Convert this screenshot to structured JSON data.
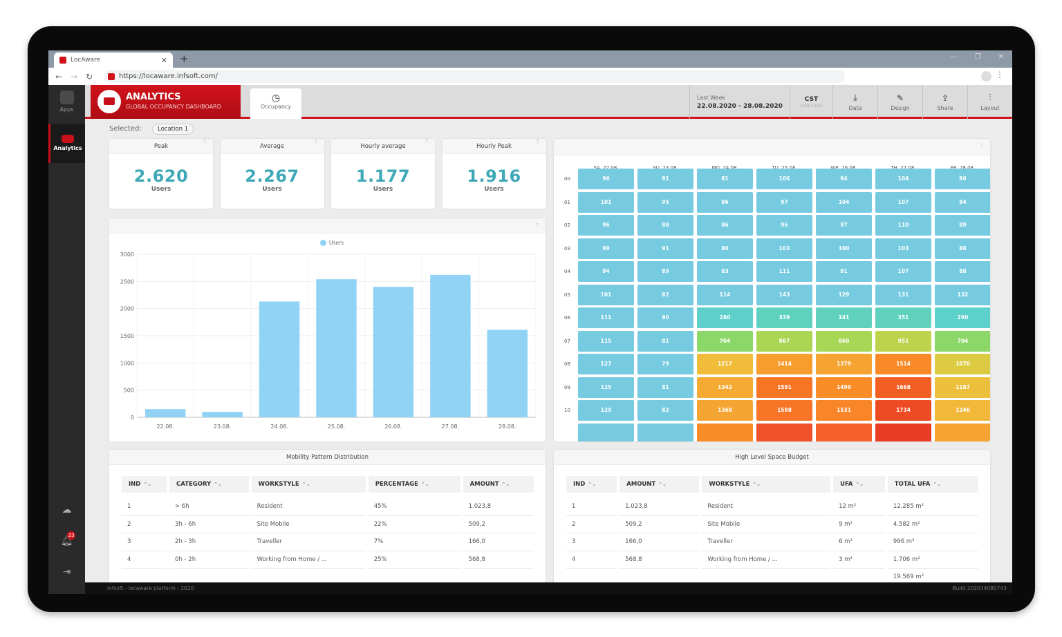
{
  "browser": {
    "tab_title": "LocAware",
    "url": "https://locaware.infsoft.com/"
  },
  "sidebar": {
    "items": [
      {
        "label": "Apps",
        "icon": "apps-icon"
      },
      {
        "label": "Analytics",
        "icon": "analytics-icon"
      }
    ],
    "bottom_icons": [
      "cloud-icon",
      "bell-icon",
      "logout-icon"
    ],
    "notification_count": "33"
  },
  "header": {
    "title": "ANALYTICS",
    "subtitle": "GLOBAL OCCUPANCY DASHBOARD",
    "tab": "Occupancy",
    "range_label": "Last Week",
    "range": "22.08.2020 - 28.08.2020",
    "timezone": "CST",
    "tz_offset": "(UTC+02)",
    "buttons": [
      {
        "label": "Data",
        "icon": "download-icon"
      },
      {
        "label": "Design",
        "icon": "brush-icon"
      },
      {
        "label": "Share",
        "icon": "share-icon"
      },
      {
        "label": "Layout",
        "icon": "sliders-icon"
      }
    ]
  },
  "selection": {
    "label": "Selected:",
    "value": "Location 1"
  },
  "kpis": [
    {
      "title": "Peak",
      "value": "2.620",
      "unit": "Users"
    },
    {
      "title": "Average",
      "value": "2.267",
      "unit": "Users"
    },
    {
      "title": "Hourly average",
      "value": "1.177",
      "unit": "Users"
    },
    {
      "title": "Hourly Peak",
      "value": "1.916",
      "unit": "Users"
    }
  ],
  "chart_data": {
    "type": "bar",
    "categories": [
      "22.08.",
      "23.08.",
      "24.08.",
      "25.08.",
      "26.08.",
      "27.08.",
      "28.08."
    ],
    "series": [
      {
        "name": "Users",
        "values": [
          150,
          100,
          2130,
          2540,
          2400,
          2620,
          1610
        ]
      }
    ],
    "ylim": [
      0,
      3000
    ],
    "yticks": [
      0,
      500,
      1000,
      1500,
      2000,
      2500,
      3000
    ],
    "legend": "top-center",
    "grid": true,
    "color": "#91d3f5"
  },
  "heatmap": {
    "columns": [
      "SA, 22.08.",
      "SU, 23.08.",
      "MO, 24.08.",
      "TU, 25.08.",
      "WE, 26.08.",
      "TH, 27.08.",
      "FR, 28.08."
    ],
    "rows": [
      "00",
      "01",
      "02",
      "03",
      "04",
      "05",
      "06",
      "07",
      "08",
      "09",
      "10"
    ],
    "values": [
      [
        96,
        91,
        81,
        106,
        94,
        104,
        86
      ],
      [
        101,
        95,
        86,
        97,
        104,
        107,
        84
      ],
      [
        96,
        88,
        86,
        96,
        97,
        110,
        89
      ],
      [
        99,
        91,
        80,
        103,
        100,
        103,
        88
      ],
      [
        94,
        89,
        83,
        111,
        91,
        107,
        88
      ],
      [
        101,
        82,
        114,
        143,
        129,
        131,
        132
      ],
      [
        111,
        90,
        280,
        339,
        341,
        351,
        290
      ],
      [
        115,
        81,
        704,
        867,
        860,
        951,
        704
      ],
      [
        127,
        79,
        1217,
        1414,
        1379,
        1514,
        1070
      ],
      [
        125,
        81,
        1342,
        1591,
        1499,
        1668,
        1187
      ],
      [
        129,
        82,
        1368,
        1598,
        1531,
        1734,
        1246
      ]
    ],
    "partial_row_colors": [
      "#76cbe0",
      "#76cbe0",
      "#f98d27",
      "#f0502a",
      "#f5612a",
      "#ea3b24",
      "#f5a431"
    ]
  },
  "mobility": {
    "title": "Mobility Pattern Distribution",
    "columns": [
      "IND",
      "CATEGORY",
      "WORKSTYLE",
      "PERCENTAGE",
      "AMOUNT"
    ],
    "rows": [
      [
        "1",
        "> 6h",
        "Resident",
        "45%",
        "1.023,8"
      ],
      [
        "2",
        "3h - 6h",
        "Site Mobile",
        "22%",
        "509,2"
      ],
      [
        "3",
        "2h - 3h",
        "Traveller",
        "7%",
        "166,0"
      ],
      [
        "4",
        "0h - 2h",
        "Working from Home / ...",
        "25%",
        "568,8"
      ]
    ]
  },
  "budget": {
    "title": "High Level Space Budget",
    "columns": [
      "IND",
      "AMOUNT",
      "WORKSTYLE",
      "UFA",
      "TOTAL UFA"
    ],
    "rows": [
      [
        "1",
        "1.023,8",
        "Resident",
        "12 m²",
        "12.285 m²"
      ],
      [
        "2",
        "509,2",
        "Site Mobile",
        "9 m²",
        "4.582 m²"
      ],
      [
        "3",
        "166,0",
        "Traveller",
        "6 m²",
        "996 m²"
      ],
      [
        "4",
        "568,8",
        "Working from Home / ...",
        "3 m²",
        "1.706 m²"
      ],
      [
        "",
        "",
        "",
        "",
        "19.569 m²"
      ]
    ]
  },
  "footer": {
    "left": "infsoft - locaware platform - 2020",
    "right": "Build 202014080743"
  }
}
